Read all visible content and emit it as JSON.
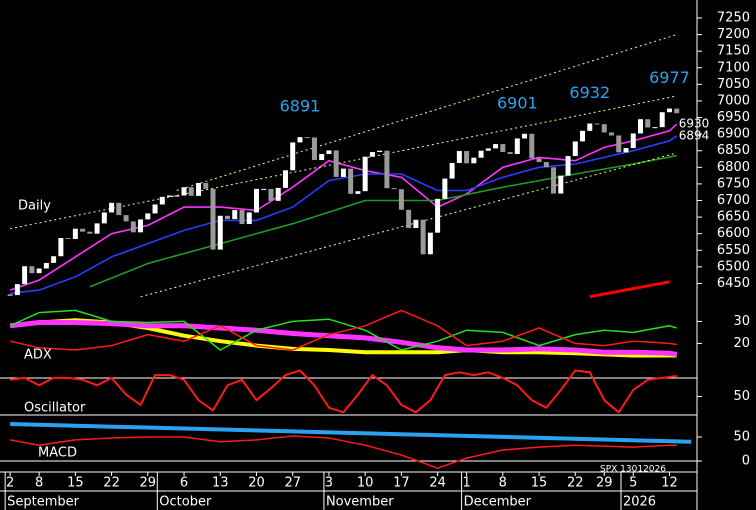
{
  "chart_data": [
    {
      "type": "candlestick",
      "label": "Daily",
      "footer": "SPX 13012026",
      "close": [
        6415,
        6448,
        6502,
        6481,
        6495,
        6512,
        6532,
        6587,
        6584,
        6615,
        6606,
        6600,
        6631,
        6664,
        6693,
        6656,
        6637,
        6604,
        6643,
        6661,
        6688,
        6711,
        6715,
        6715,
        6740,
        6714,
        6753,
        6735,
        6552,
        6654,
        6644,
        6671,
        6629,
        6664,
        6735,
        6735,
        6699,
        6738,
        6791,
        6875,
        6891,
        6890,
        6822,
        6840,
        6851,
        6771,
        6796,
        6720,
        6728,
        6832,
        6846,
        6850,
        6737,
        6734,
        6672,
        6617,
        6642,
        6538,
        6603,
        6705,
        6766,
        6813,
        6849,
        6812,
        6829,
        6850,
        6857,
        6870,
        6846,
        6840,
        6887,
        6901,
        6827,
        6816,
        6800,
        6721,
        6775,
        6834,
        6878,
        6910,
        6932,
        6930,
        6905,
        6896,
        6845,
        6858,
        6902,
        6945,
        6920,
        6921,
        6966,
        6977,
        6963
      ],
      "up_color": "#ffffff",
      "down_color": "#9a9a9a",
      "xlim": [
        -1.4,
        94.8
      ],
      "ylim": [
        6370,
        7300
      ],
      "yticks": [
        6450,
        6500,
        6550,
        6600,
        6650,
        6700,
        6750,
        6800,
        6850,
        6900,
        6950,
        7000,
        7050,
        7100,
        7150,
        7200,
        7250
      ],
      "xticks": [
        {
          "value": 0,
          "label": "2"
        },
        {
          "value": 4,
          "label": "8"
        },
        {
          "value": 9,
          "label": "15"
        },
        {
          "value": 14,
          "label": "22"
        },
        {
          "value": 19,
          "label": "29"
        },
        {
          "value": 24,
          "label": "6"
        },
        {
          "value": 29,
          "label": "13"
        },
        {
          "value": 34,
          "label": "20"
        },
        {
          "value": 39,
          "label": "27"
        },
        {
          "value": 44,
          "label": "3"
        },
        {
          "value": 49,
          "label": "10"
        },
        {
          "value": 54,
          "label": "17"
        },
        {
          "value": 59,
          "label": "24"
        },
        {
          "value": 63,
          "label": "1"
        },
        {
          "value": 68,
          "label": "8"
        },
        {
          "value": 73,
          "label": "15"
        },
        {
          "value": 78,
          "label": "22"
        },
        {
          "value": 82,
          "label": "29"
        },
        {
          "value": 86,
          "label": "5"
        },
        {
          "value": 91,
          "label": "12"
        }
      ],
      "months": [
        {
          "value": 0,
          "label": "September"
        },
        {
          "value": 21,
          "label": "October"
        },
        {
          "value": 44,
          "label": "November"
        },
        {
          "value": 63,
          "label": "December"
        },
        {
          "value": 85,
          "label": "2026"
        }
      ],
      "series": [
        {
          "color": "#ff33ff",
          "width": 1.6,
          "end_label": true,
          "x": [
            0,
            4,
            9,
            14,
            19,
            24,
            29,
            34,
            39,
            44,
            49,
            54,
            59,
            63,
            68,
            73,
            78,
            82,
            86,
            91,
            92
          ],
          "values": [
            6430,
            6460,
            6530,
            6600,
            6625,
            6680,
            6680,
            6670,
            6740,
            6820,
            6790,
            6770,
            6680,
            6720,
            6800,
            6830,
            6820,
            6860,
            6880,
            6910,
            6930
          ]
        },
        {
          "color": "#2a3cff",
          "width": 1.6,
          "end_label": true,
          "x": [
            0,
            4,
            9,
            14,
            19,
            24,
            29,
            34,
            39,
            44,
            49,
            54,
            59,
            63,
            68,
            73,
            78,
            82,
            86,
            91,
            92
          ],
          "values": [
            6420,
            6430,
            6470,
            6530,
            6570,
            6610,
            6640,
            6640,
            6680,
            6760,
            6780,
            6780,
            6730,
            6730,
            6770,
            6800,
            6810,
            6830,
            6850,
            6880,
            6894
          ]
        },
        {
          "color": "#1f9a1f",
          "width": 1.6,
          "x": [
            11,
            19,
            29,
            39,
            49,
            59,
            68,
            78,
            86,
            92
          ],
          "values": [
            6440,
            6510,
            6570,
            6630,
            6700,
            6700,
            6740,
            6780,
            6810,
            6835
          ]
        },
        {
          "color": "#ffff66",
          "width": 1,
          "dash": true,
          "x": [
            23,
            92
          ],
          "values": [
            6730,
            7200
          ]
        },
        {
          "color": "#ffff66",
          "width": 1,
          "dash": true,
          "x": [
            0,
            92
          ],
          "values": [
            6615,
            7015
          ]
        },
        {
          "color": "#ffff66",
          "width": 1,
          "dash": true,
          "x": [
            18,
            92
          ],
          "values": [
            6410,
            6843
          ]
        },
        {
          "color": "#ff0000",
          "width": 3,
          "x": [
            80,
            91
          ],
          "values": [
            6410,
            6455
          ]
        }
      ],
      "annotations": [
        {
          "x": 40,
          "value": 6891
        },
        {
          "x": 70,
          "value": 6901
        },
        {
          "x": 80,
          "value": 6932
        },
        {
          "x": 91,
          "value": 6977
        }
      ]
    },
    {
      "type": "line",
      "label": "ADX",
      "ylim": [
        12,
        37
      ],
      "yticks": [
        20,
        30
      ],
      "series": [
        {
          "color": "#ffff00",
          "width": 4,
          "x": [
            0,
            4,
            9,
            14,
            19,
            24,
            29,
            34,
            39,
            44,
            49,
            54,
            59,
            63,
            68,
            73,
            78,
            82,
            86,
            91,
            92
          ],
          "values": [
            28,
            29.5,
            30.5,
            29.5,
            27,
            23.5,
            21,
            19,
            17.5,
            17,
            16,
            16,
            16,
            17,
            16,
            16,
            15.5,
            15,
            14.5,
            14.5,
            14.5
          ]
        },
        {
          "color": "#ff33ff",
          "width": 5,
          "x": [
            0,
            4,
            9,
            14,
            19,
            24,
            29,
            34,
            39,
            44,
            49,
            54,
            59,
            63,
            68,
            73,
            78,
            82,
            86,
            91,
            92
          ],
          "values": [
            28,
            29.5,
            29.5,
            29,
            28,
            28,
            27,
            26,
            24.5,
            23.5,
            22.5,
            20.5,
            18,
            17,
            17,
            17.5,
            17,
            16,
            16,
            15.5,
            15
          ]
        },
        {
          "color": "#22e022",
          "width": 1.5,
          "x": [
            0,
            4,
            9,
            14,
            19,
            24,
            29,
            34,
            39,
            44,
            49,
            54,
            59,
            63,
            68,
            73,
            78,
            82,
            86,
            91,
            92
          ],
          "values": [
            28,
            34,
            35,
            30,
            29.5,
            30,
            17,
            26,
            30,
            31,
            26,
            17,
            21,
            26,
            25,
            19,
            24,
            26,
            25,
            28,
            27
          ]
        },
        {
          "color": "#ff1a1a",
          "width": 1.5,
          "x": [
            0,
            4,
            9,
            14,
            19,
            24,
            29,
            34,
            39,
            44,
            49,
            54,
            59,
            63,
            68,
            73,
            78,
            82,
            86,
            91,
            92
          ],
          "values": [
            21,
            18,
            17,
            19,
            24,
            21,
            28,
            19,
            17,
            24,
            28,
            35,
            28,
            19,
            21,
            27,
            20,
            19,
            21,
            20,
            19.5
          ]
        }
      ]
    },
    {
      "type": "line",
      "label": "Oscillator",
      "ylim": [
        0,
        100
      ],
      "yticks": [
        50
      ],
      "series": [
        {
          "color": "#ff1a1a",
          "width": 2,
          "x": [
            0,
            2,
            4,
            6,
            8,
            10,
            12,
            14,
            16,
            18,
            20,
            22,
            24,
            26,
            28,
            30,
            32,
            34,
            36,
            38,
            40,
            42,
            44,
            46,
            48,
            50,
            52,
            54,
            56,
            58,
            60,
            62,
            64,
            66,
            68,
            70,
            72,
            74,
            76,
            78,
            80,
            82,
            84,
            86,
            88,
            90,
            92
          ],
          "values": [
            68,
            70,
            62,
            70,
            70,
            68,
            62,
            70,
            52,
            41,
            73,
            73,
            68,
            46,
            35,
            62,
            68,
            46,
            59,
            73,
            78,
            62,
            38,
            33,
            52,
            73,
            62,
            41,
            33,
            46,
            73,
            76,
            73,
            76,
            70,
            62,
            46,
            38,
            57,
            78,
            76,
            46,
            33,
            57,
            68,
            70,
            72
          ]
        }
      ]
    },
    {
      "type": "line",
      "label": "MACD",
      "ylim": [
        -20,
        85
      ],
      "yticks": [
        0,
        50
      ],
      "series": [
        {
          "color": "#29a3f0",
          "width": 4,
          "x": [
            0,
            94
          ],
          "values": [
            77,
            40
          ]
        },
        {
          "color": "#ff1a1a",
          "width": 1.5,
          "x": [
            0,
            4,
            9,
            14,
            19,
            24,
            29,
            34,
            39,
            44,
            49,
            54,
            59,
            63,
            68,
            73,
            78,
            82,
            86,
            91,
            92
          ],
          "values": [
            44,
            33,
            44,
            48,
            50,
            50,
            40,
            44,
            52,
            48,
            33,
            12.5,
            -15,
            6,
            23,
            29,
            33,
            31,
            29,
            33,
            33
          ]
        }
      ]
    }
  ]
}
